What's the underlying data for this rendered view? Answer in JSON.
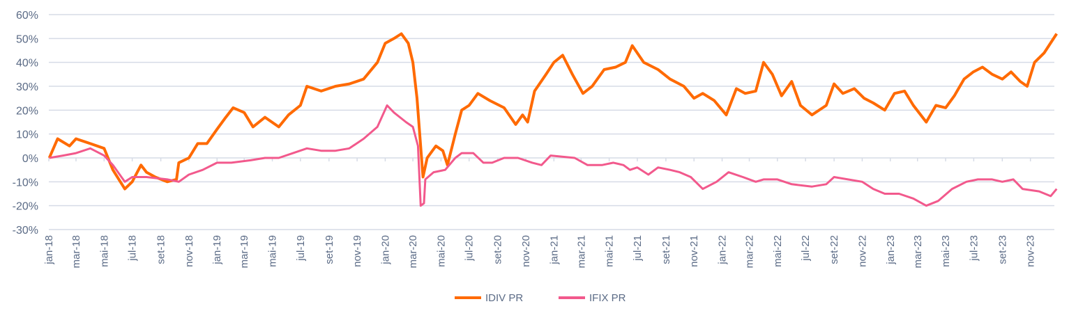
{
  "chart_data": {
    "type": "line",
    "title": "",
    "xlabel": "",
    "ylabel": "",
    "ylim": [
      -30,
      60
    ],
    "yticks": [
      "60%",
      "50%",
      "40%",
      "30%",
      "20%",
      "10%",
      "0%",
      "-10%",
      "-20%",
      "-30%"
    ],
    "ytick_values": [
      60,
      50,
      40,
      30,
      20,
      10,
      0,
      -10,
      -20,
      -30
    ],
    "xticks": [
      "jan-18",
      "mar-18",
      "mai-18",
      "jul-18",
      "set-18",
      "nov-18",
      "jan-19",
      "mar-19",
      "mai-19",
      "jul-19",
      "set-19",
      "nov-19",
      "jan-20",
      "mar-20",
      "mai-20",
      "jul-20",
      "set-20",
      "nov-20",
      "jan-21",
      "mar-21",
      "mai-21",
      "jul-21",
      "set-21",
      "nov-21",
      "jan-22",
      "mar-22",
      "mai-22",
      "jul-22",
      "set-22",
      "nov-22",
      "jan-23",
      "mar-23",
      "mai-23",
      "jul-23",
      "set-23",
      "nov-23"
    ],
    "xlim": [
      "2018-01-01",
      "2023-12-29"
    ],
    "grid": true,
    "legend_position": "bottom",
    "series": [
      {
        "name": "IDIV PR",
        "color": "#FF6A00",
        "points": [
          [
            "2018-01-02",
            0
          ],
          [
            "2018-01-20",
            8
          ],
          [
            "2018-02-15",
            5
          ],
          [
            "2018-03-01",
            8
          ],
          [
            "2018-04-01",
            6
          ],
          [
            "2018-05-01",
            4
          ],
          [
            "2018-05-20",
            -5
          ],
          [
            "2018-06-15",
            -13
          ],
          [
            "2018-07-01",
            -10
          ],
          [
            "2018-07-20",
            -3
          ],
          [
            "2018-08-01",
            -6
          ],
          [
            "2018-08-20",
            -8
          ],
          [
            "2018-09-15",
            -10
          ],
          [
            "2018-10-05",
            -9
          ],
          [
            "2018-10-10",
            -2
          ],
          [
            "2018-11-01",
            0
          ],
          [
            "2018-11-20",
            6
          ],
          [
            "2018-12-10",
            6
          ],
          [
            "2019-01-01",
            12
          ],
          [
            "2019-01-20",
            17
          ],
          [
            "2019-02-05",
            21
          ],
          [
            "2019-03-01",
            19
          ],
          [
            "2019-03-20",
            13
          ],
          [
            "2019-04-15",
            17
          ],
          [
            "2019-05-15",
            13
          ],
          [
            "2019-06-05",
            18
          ],
          [
            "2019-07-01",
            22
          ],
          [
            "2019-07-15",
            30
          ],
          [
            "2019-08-15",
            28
          ],
          [
            "2019-09-15",
            30
          ],
          [
            "2019-10-15",
            31
          ],
          [
            "2019-11-15",
            33
          ],
          [
            "2019-12-15",
            40
          ],
          [
            "2020-01-01",
            48
          ],
          [
            "2020-01-20",
            50
          ],
          [
            "2020-02-05",
            52
          ],
          [
            "2020-02-20",
            48
          ],
          [
            "2020-03-01",
            40
          ],
          [
            "2020-03-10",
            25
          ],
          [
            "2020-03-23",
            -8
          ],
          [
            "2020-04-01",
            0
          ],
          [
            "2020-04-20",
            5
          ],
          [
            "2020-05-05",
            3
          ],
          [
            "2020-05-15",
            -3
          ],
          [
            "2020-06-01",
            10
          ],
          [
            "2020-06-15",
            20
          ],
          [
            "2020-07-01",
            22
          ],
          [
            "2020-07-20",
            27
          ],
          [
            "2020-08-15",
            24
          ],
          [
            "2020-09-15",
            21
          ],
          [
            "2020-10-10",
            14
          ],
          [
            "2020-10-25",
            18
          ],
          [
            "2020-11-05",
            15
          ],
          [
            "2020-11-20",
            28
          ],
          [
            "2020-12-15",
            35
          ],
          [
            "2021-01-01",
            40
          ],
          [
            "2021-01-20",
            43
          ],
          [
            "2021-02-10",
            35
          ],
          [
            "2021-03-05",
            27
          ],
          [
            "2021-03-25",
            30
          ],
          [
            "2021-04-20",
            37
          ],
          [
            "2021-05-15",
            38
          ],
          [
            "2021-06-05",
            40
          ],
          [
            "2021-06-20",
            47
          ],
          [
            "2021-07-15",
            40
          ],
          [
            "2021-08-15",
            37
          ],
          [
            "2021-09-10",
            33
          ],
          [
            "2021-10-10",
            30
          ],
          [
            "2021-11-01",
            25
          ],
          [
            "2021-11-20",
            27
          ],
          [
            "2021-12-15",
            24
          ],
          [
            "2022-01-10",
            18
          ],
          [
            "2022-02-01",
            29
          ],
          [
            "2022-02-20",
            27
          ],
          [
            "2022-03-15",
            28
          ],
          [
            "2022-04-01",
            40
          ],
          [
            "2022-04-20",
            35
          ],
          [
            "2022-05-10",
            26
          ],
          [
            "2022-06-01",
            32
          ],
          [
            "2022-06-20",
            22
          ],
          [
            "2022-07-15",
            18
          ],
          [
            "2022-08-15",
            22
          ],
          [
            "2022-09-01",
            31
          ],
          [
            "2022-09-20",
            27
          ],
          [
            "2022-10-15",
            29
          ],
          [
            "2022-11-05",
            25
          ],
          [
            "2022-11-25",
            23
          ],
          [
            "2022-12-20",
            20
          ],
          [
            "2023-01-10",
            27
          ],
          [
            "2023-02-01",
            28
          ],
          [
            "2023-02-20",
            22
          ],
          [
            "2023-03-20",
            15
          ],
          [
            "2023-04-10",
            22
          ],
          [
            "2023-05-01",
            21
          ],
          [
            "2023-05-20",
            26
          ],
          [
            "2023-06-10",
            33
          ],
          [
            "2023-06-30",
            36
          ],
          [
            "2023-07-20",
            38
          ],
          [
            "2023-08-10",
            35
          ],
          [
            "2023-09-01",
            33
          ],
          [
            "2023-09-20",
            36
          ],
          [
            "2023-10-10",
            32
          ],
          [
            "2023-10-25",
            30
          ],
          [
            "2023-11-10",
            40
          ],
          [
            "2023-12-01",
            44
          ],
          [
            "2023-12-28",
            52
          ]
        ]
      },
      {
        "name": "IFIX PR",
        "color": "#F2598C",
        "points": [
          [
            "2018-01-02",
            0
          ],
          [
            "2018-02-01",
            1
          ],
          [
            "2018-03-01",
            2
          ],
          [
            "2018-04-01",
            4
          ],
          [
            "2018-05-01",
            1
          ],
          [
            "2018-05-20",
            -3
          ],
          [
            "2018-06-15",
            -10
          ],
          [
            "2018-07-01",
            -8
          ],
          [
            "2018-08-01",
            -8
          ],
          [
            "2018-09-15",
            -9
          ],
          [
            "2018-10-10",
            -10
          ],
          [
            "2018-11-01",
            -7
          ],
          [
            "2018-12-01",
            -5
          ],
          [
            "2019-01-01",
            -2
          ],
          [
            "2019-02-01",
            -2
          ],
          [
            "2019-03-15",
            -1
          ],
          [
            "2019-04-15",
            0
          ],
          [
            "2019-05-15",
            0
          ],
          [
            "2019-06-15",
            2
          ],
          [
            "2019-07-15",
            4
          ],
          [
            "2019-08-15",
            3
          ],
          [
            "2019-09-15",
            3
          ],
          [
            "2019-10-15",
            4
          ],
          [
            "2019-11-15",
            8
          ],
          [
            "2019-12-15",
            13
          ],
          [
            "2020-01-05",
            22
          ],
          [
            "2020-01-20",
            19
          ],
          [
            "2020-02-15",
            15
          ],
          [
            "2020-03-01",
            13
          ],
          [
            "2020-03-12",
            5
          ],
          [
            "2020-03-18",
            -20
          ],
          [
            "2020-03-25",
            -19
          ],
          [
            "2020-03-28",
            -9
          ],
          [
            "2020-04-15",
            -6
          ],
          [
            "2020-05-10",
            -5
          ],
          [
            "2020-06-01",
            0
          ],
          [
            "2020-06-15",
            2
          ],
          [
            "2020-07-10",
            2
          ],
          [
            "2020-08-01",
            -2
          ],
          [
            "2020-08-20",
            -2
          ],
          [
            "2020-09-15",
            0
          ],
          [
            "2020-10-15",
            0
          ],
          [
            "2020-11-15",
            -2
          ],
          [
            "2020-12-05",
            -3
          ],
          [
            "2020-12-25",
            1
          ],
          [
            "2021-02-15",
            0
          ],
          [
            "2021-03-15",
            -3
          ],
          [
            "2021-04-15",
            -3
          ],
          [
            "2021-05-10",
            -2
          ],
          [
            "2021-06-01",
            -3
          ],
          [
            "2021-06-15",
            -5
          ],
          [
            "2021-07-01",
            -4
          ],
          [
            "2021-07-25",
            -7
          ],
          [
            "2021-08-15",
            -4
          ],
          [
            "2021-09-10",
            -5
          ],
          [
            "2021-10-01",
            -6
          ],
          [
            "2021-10-25",
            -8
          ],
          [
            "2021-11-20",
            -13
          ],
          [
            "2021-12-20",
            -10
          ],
          [
            "2022-01-15",
            -6
          ],
          [
            "2022-02-15",
            -8
          ],
          [
            "2022-03-15",
            -10
          ],
          [
            "2022-04-01",
            -9
          ],
          [
            "2022-05-01",
            -9
          ],
          [
            "2022-06-01",
            -11
          ],
          [
            "2022-07-15",
            -12
          ],
          [
            "2022-08-15",
            -11
          ],
          [
            "2022-09-01",
            -8
          ],
          [
            "2022-10-01",
            -9
          ],
          [
            "2022-11-01",
            -10
          ],
          [
            "2022-11-25",
            -13
          ],
          [
            "2022-12-20",
            -15
          ],
          [
            "2023-01-20",
            -15
          ],
          [
            "2023-02-20",
            -17
          ],
          [
            "2023-03-20",
            -20
          ],
          [
            "2023-04-15",
            -18
          ],
          [
            "2023-05-15",
            -13
          ],
          [
            "2023-06-15",
            -10
          ],
          [
            "2023-07-10",
            -9
          ],
          [
            "2023-08-10",
            -9
          ],
          [
            "2023-09-01",
            -10
          ],
          [
            "2023-09-25",
            -9
          ],
          [
            "2023-10-15",
            -13
          ],
          [
            "2023-11-20",
            -14
          ],
          [
            "2023-12-15",
            -16
          ],
          [
            "2023-12-28",
            -13
          ]
        ]
      }
    ]
  }
}
